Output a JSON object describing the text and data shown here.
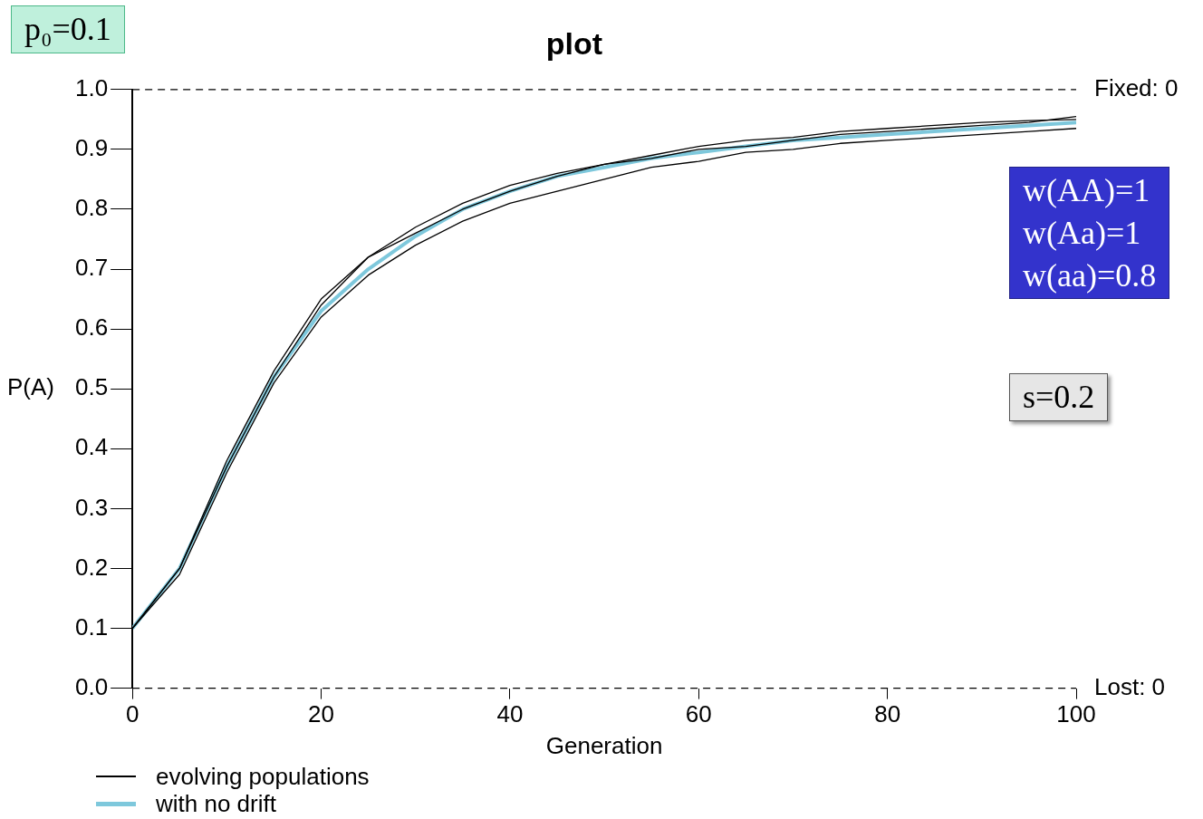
{
  "chart_data": {
    "type": "line",
    "title": "plot",
    "xlabel": "Generation",
    "ylabel": "P(A)",
    "xlim": [
      0,
      100
    ],
    "xticks": [
      0,
      20,
      40,
      60,
      80,
      100
    ],
    "ylim": [
      0,
      1
    ],
    "yticks": [
      {
        "value": 0,
        "label": "0.0"
      },
      {
        "value": 0.1,
        "label": "0.1"
      },
      {
        "value": 0.2,
        "label": "0.2"
      },
      {
        "value": 0.3,
        "label": "0.3"
      },
      {
        "value": 0.4,
        "label": "0.4"
      },
      {
        "value": 0.5,
        "label": "0.5"
      },
      {
        "value": 0.6,
        "label": "0.6"
      },
      {
        "value": 0.7,
        "label": "0.7"
      },
      {
        "value": 0.8,
        "label": "0.8"
      },
      {
        "value": 0.9,
        "label": "0.9"
      },
      {
        "value": 1,
        "label": "1.0"
      }
    ],
    "x": [
      0,
      5,
      10,
      15,
      20,
      25,
      30,
      35,
      40,
      45,
      50,
      55,
      60,
      65,
      70,
      75,
      80,
      85,
      90,
      95,
      100
    ],
    "series": [
      {
        "name": "evolving populations",
        "color": "#000000",
        "values": [
          0.1,
          0.2,
          0.38,
          0.53,
          0.65,
          0.72,
          0.77,
          0.81,
          0.84,
          0.86,
          0.875,
          0.885,
          0.9,
          0.905,
          0.915,
          0.925,
          0.93,
          0.935,
          0.94,
          0.945,
          0.955
        ]
      },
      {
        "color": "#000000",
        "values": [
          0.1,
          0.19,
          0.36,
          0.51,
          0.62,
          0.69,
          0.74,
          0.78,
          0.81,
          0.83,
          0.85,
          0.87,
          0.88,
          0.895,
          0.9,
          0.91,
          0.915,
          0.92,
          0.925,
          0.93,
          0.935
        ]
      },
      {
        "color": "#000000",
        "values": [
          0.1,
          0.2,
          0.37,
          0.52,
          0.64,
          0.72,
          0.76,
          0.8,
          0.83,
          0.855,
          0.875,
          0.89,
          0.905,
          0.915,
          0.92,
          0.93,
          0.935,
          0.94,
          0.945,
          0.948,
          0.95
        ]
      },
      {
        "name": "with no drift",
        "color": "#7ec8dc",
        "values": [
          0.1,
          0.2,
          0.37,
          0.52,
          0.63,
          0.7,
          0.755,
          0.8,
          0.83,
          0.855,
          0.87,
          0.885,
          0.895,
          0.905,
          0.915,
          0.92,
          0.925,
          0.93,
          0.935,
          0.94,
          0.945
        ]
      }
    ],
    "ref_lines": [
      {
        "axis": "y",
        "value": 1,
        "line_style": "dashed"
      },
      {
        "axis": "y",
        "value": 0,
        "line_style": "dashed"
      }
    ],
    "annotations": [
      "p₀=0.1",
      "w(AA)=1\nw(Aa)=1\nw(aa)=0.8",
      "s=0.2",
      {
        "text": "Fixed: 0",
        "x": 100,
        "y": 1
      },
      {
        "text": "Lost: 0",
        "x": 100,
        "y": 0
      }
    ],
    "legend": "bottom left",
    "grid": false,
    "marker": "none",
    "line_style": "solid"
  }
}
